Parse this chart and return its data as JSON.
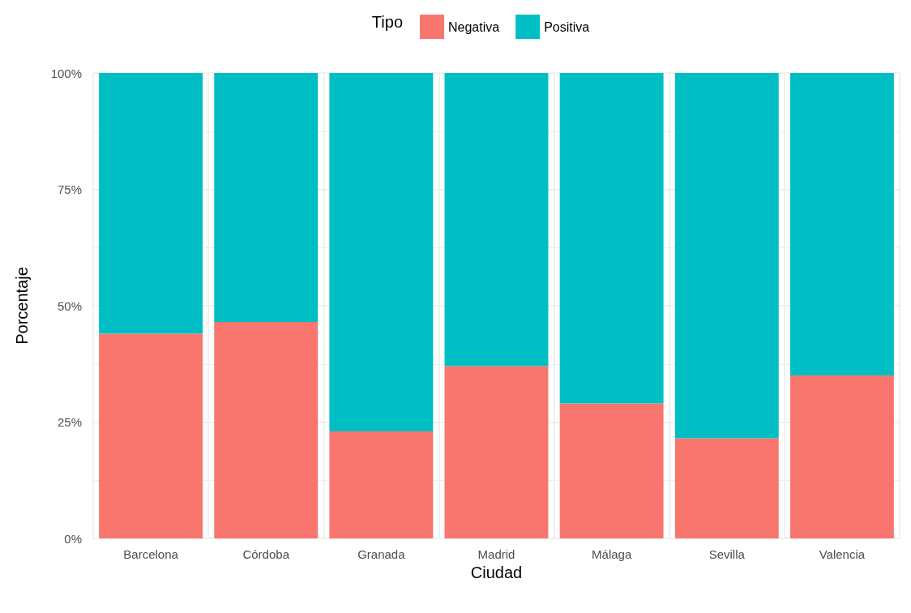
{
  "chart_data": {
    "type": "bar",
    "stacked": true,
    "xlabel": "Ciudad",
    "ylabel": "Porcentaje",
    "legend_title": "Tipo",
    "legend": "top",
    "categories": [
      "Barcelona",
      "Córdoba",
      "Granada",
      "Madrid",
      "Málaga",
      "Sevilla",
      "Valencia"
    ],
    "series": [
      {
        "name": "Negativa",
        "color": "#f8766d",
        "values": [
          44,
          46.5,
          23,
          37,
          29,
          21.5,
          35
        ]
      },
      {
        "name": "Positiva",
        "color": "#00bfc4",
        "values": [
          56,
          53.5,
          77,
          63,
          71,
          78.5,
          65
        ]
      }
    ],
    "ylim": [
      0,
      100
    ],
    "yticks": [
      {
        "value": 0,
        "label": "0%"
      },
      {
        "value": 25,
        "label": "25%"
      },
      {
        "value": 50,
        "label": "50%"
      },
      {
        "value": 75,
        "label": "75%"
      },
      {
        "value": 100,
        "label": "100%"
      }
    ],
    "grid": true
  }
}
